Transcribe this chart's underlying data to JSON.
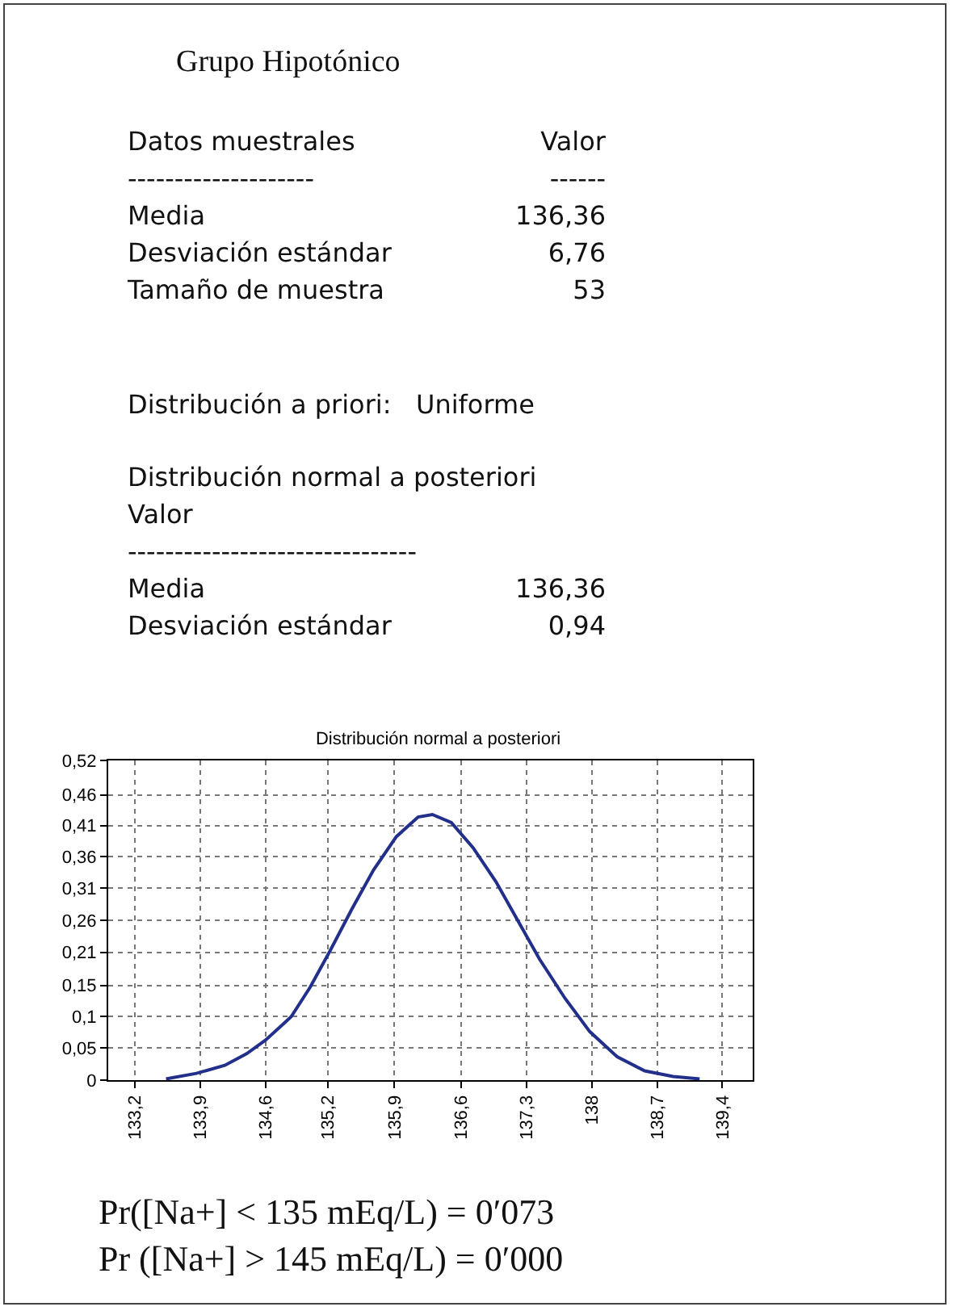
{
  "chart_data": {
    "type": "line",
    "title": "Distribución normal a posteriori",
    "x": [
      133.53,
      133.85,
      134.15,
      134.38,
      134.58,
      134.85,
      135.05,
      135.26,
      135.49,
      135.72,
      135.96,
      136.19,
      136.34,
      136.54,
      136.77,
      137.01,
      137.24,
      137.47,
      137.74,
      138.0,
      138.29,
      138.58,
      138.88,
      139.16
    ],
    "series": [
      {
        "color": "#22308c",
        "values": [
          0.002,
          0.011,
          0.024,
          0.043,
          0.065,
          0.103,
          0.151,
          0.21,
          0.278,
          0.342,
          0.396,
          0.428,
          0.432,
          0.419,
          0.378,
          0.323,
          0.26,
          0.197,
          0.133,
          0.079,
          0.038,
          0.015,
          0.006,
          0.002
        ]
      }
    ],
    "xlim": [
      132.92,
      139.72
    ],
    "xticks": [
      {
        "value": 133.2,
        "label": "133,2"
      },
      {
        "value": 133.889,
        "label": "133,9"
      },
      {
        "value": 134.578,
        "label": "134,6"
      },
      {
        "value": 135.24,
        "label": "135,2"
      },
      {
        "value": 135.94,
        "label": "135,9"
      },
      {
        "value": 136.644,
        "label": "136,6"
      },
      {
        "value": 137.333,
        "label": "137,3"
      },
      {
        "value": 138.022,
        "label": "138"
      },
      {
        "value": 138.711,
        "label": "138,7"
      },
      {
        "value": 139.4,
        "label": "139,4"
      }
    ],
    "ylim": [
      0,
      0.52
    ],
    "yticks": [
      0,
      {
        "value": 0.052,
        "label": "0,05"
      },
      {
        "value": 0.104,
        "label": "0,1"
      },
      {
        "value": 0.154,
        "label": "0,15"
      },
      {
        "value": 0.208,
        "label": "0,21"
      },
      {
        "value": 0.26,
        "label": "0,26"
      },
      {
        "value": 0.312,
        "label": "0,31"
      },
      {
        "value": 0.364,
        "label": "0,36"
      },
      {
        "value": 0.414,
        "label": "0,41"
      },
      {
        "value": 0.464,
        "label": "0,46"
      },
      {
        "value": 0.52,
        "label": "0,52"
      }
    ],
    "grid": true,
    "marker": "none",
    "line_style": "solid",
    "annotations": [
      "Grupo Hipotónico",
      "Datos muestrales\tValor",
      "--------------------\t------",
      "Media\t136,36",
      "Desviación estándar\t6,76",
      "Tamaño de muestra\t53",
      "Distribución a priori:   Uniforme",
      "Distribución normal a posteriori",
      "Valor",
      "-------------------------------",
      "Media\t136,36",
      "Desviación estándar\t0,94",
      "Pr([Na+] < 135 mEq/L) = 0′073",
      "Pr ([Na+] > 145 mEq/L) = 0′000"
    ]
  }
}
